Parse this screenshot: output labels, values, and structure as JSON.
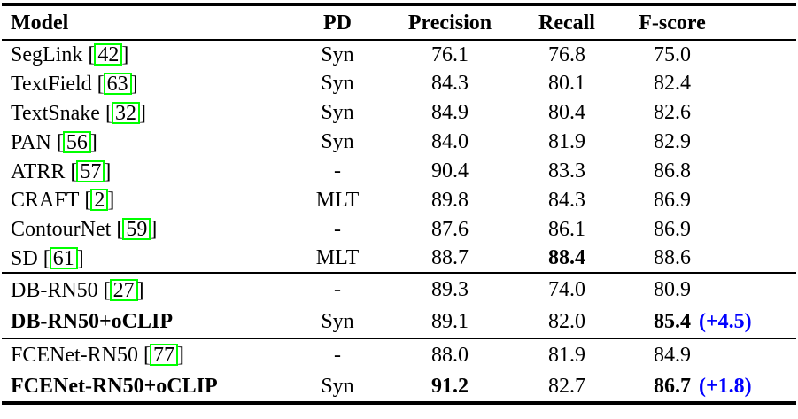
{
  "table": {
    "cite_open": "[",
    "cite_close": "]",
    "columns": {
      "model": "Model",
      "pd": "PD",
      "precision": "Precision",
      "recall": "Recall",
      "fscore": "F-score"
    },
    "sections": [
      {
        "rows": [
          {
            "model": "SegLink",
            "cite": "42",
            "pd": "Syn",
            "precision": "76.1",
            "recall": "76.8",
            "fscore": "75.0",
            "gain": ""
          },
          {
            "model": "TextField",
            "cite": "63",
            "pd": "Syn",
            "precision": "84.3",
            "recall": "80.1",
            "fscore": "82.4",
            "gain": ""
          },
          {
            "model": "TextSnake",
            "cite": "32",
            "pd": "Syn",
            "precision": "84.9",
            "recall": "80.4",
            "fscore": "82.6",
            "gain": ""
          },
          {
            "model": "PAN",
            "cite": "56",
            "pd": "Syn",
            "precision": "84.0",
            "recall": "81.9",
            "fscore": "82.9",
            "gain": ""
          },
          {
            "model": "ATRR",
            "cite": "57",
            "pd": "-",
            "precision": "90.4",
            "recall": "83.3",
            "fscore": "86.8",
            "gain": ""
          },
          {
            "model": "CRAFT",
            "cite": "2",
            "pd": "MLT",
            "precision": "89.8",
            "recall": "84.3",
            "fscore": "86.9",
            "gain": ""
          },
          {
            "model": "ContourNet",
            "cite": "59",
            "pd": "-",
            "precision": "87.6",
            "recall": "86.1",
            "fscore": "86.9",
            "gain": ""
          },
          {
            "model": "SD",
            "cite": "61",
            "pd": "MLT",
            "precision": "88.7",
            "recall": "88.4",
            "fscore": "88.6",
            "gain": ""
          }
        ]
      },
      {
        "rows": [
          {
            "model": "DB-RN50",
            "cite": "27",
            "pd": "-",
            "precision": "89.3",
            "recall": "74.0",
            "fscore": "80.9",
            "gain": ""
          },
          {
            "model": "DB-RN50+oCLIP",
            "cite": "",
            "pd": "Syn",
            "precision": "89.1",
            "recall": "82.0",
            "fscore": "85.4",
            "gain": "(+4.5)"
          }
        ]
      },
      {
        "rows": [
          {
            "model": "FCENet-RN50",
            "cite": "77",
            "pd": "-",
            "precision": "88.0",
            "recall": "81.9",
            "fscore": "84.9",
            "gain": ""
          },
          {
            "model": "FCENet-RN50+oCLIP",
            "cite": "",
            "pd": "Syn",
            "precision": "91.2",
            "recall": "82.7",
            "fscore": "86.7",
            "gain": "(+1.8)"
          }
        ]
      }
    ]
  },
  "colors": {
    "citation_border": "#00ff00",
    "gain_text": "#0000ff",
    "rule": "#000000"
  }
}
